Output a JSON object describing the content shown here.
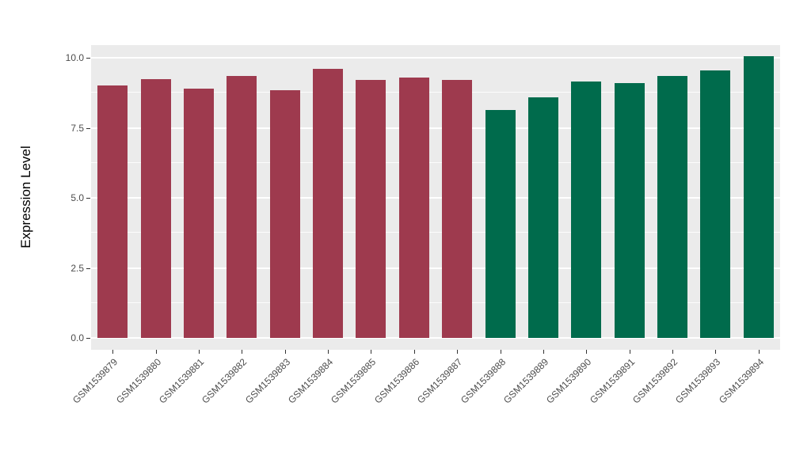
{
  "chart_data": {
    "type": "bar",
    "title": "",
    "xlabel": "",
    "ylabel": "Expression Level",
    "categories": [
      "GSM1539879",
      "GSM1539880",
      "GSM1539881",
      "GSM1539882",
      "GSM1539883",
      "GSM1539884",
      "GSM1539885",
      "GSM1539886",
      "GSM1539887",
      "GSM1539888",
      "GSM1539889",
      "GSM1539890",
      "GSM1539891",
      "GSM1539892",
      "GSM1539893",
      "GSM1539894"
    ],
    "values": [
      9.0,
      9.25,
      8.9,
      9.35,
      8.85,
      9.6,
      9.2,
      9.3,
      9.2,
      8.15,
      8.6,
      9.15,
      9.1,
      9.35,
      9.55,
      10.05
    ],
    "bar_colors": [
      "#9E3A4E",
      "#9E3A4E",
      "#9E3A4E",
      "#9E3A4E",
      "#9E3A4E",
      "#9E3A4E",
      "#9E3A4E",
      "#9E3A4E",
      "#9E3A4E",
      "#006B4C",
      "#006B4C",
      "#006B4C",
      "#006B4C",
      "#006B4C",
      "#006B4C",
      "#006B4C"
    ],
    "group_colors": {
      "left_group": "#9E3A4E",
      "right_group": "#006B4C"
    },
    "ylim": [
      0,
      10.5
    ],
    "yticks": [
      0,
      2.5,
      5,
      7.5,
      10
    ],
    "ytick_labels": [
      "0.0",
      "2.5",
      "5.0",
      "7.5",
      "10.0"
    ],
    "minor_yticks": [
      1.25,
      3.75,
      6.25,
      8.75
    ],
    "grid": true,
    "legend": "none",
    "panel_bg": "#EBEBEB",
    "grid_color": "#FFFFFF",
    "tick_label_color": "#4D4D4D",
    "axis_title_color": "#000000"
  }
}
